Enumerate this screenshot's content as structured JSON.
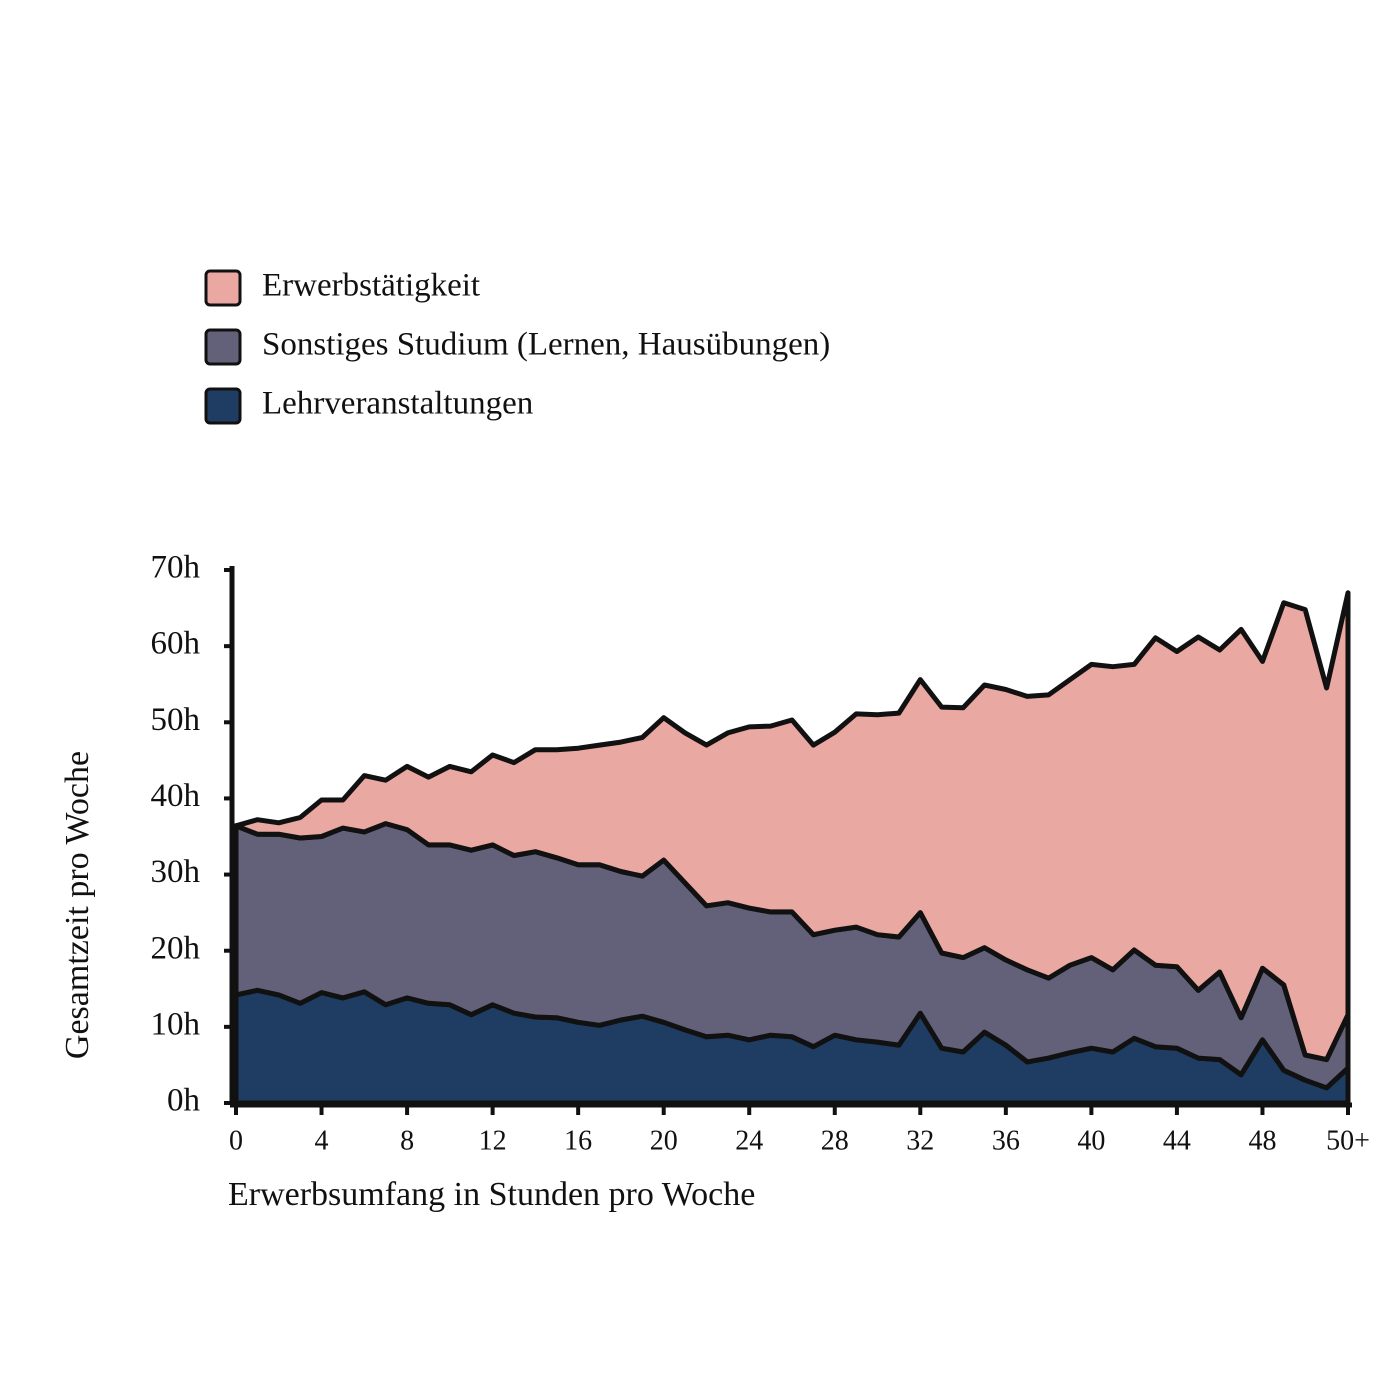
{
  "chart_data": {
    "type": "stacked_area",
    "x_label": "Erwerbsumfang in Stunden pro Woche",
    "y_label": "Gesamtzeit pro Woche",
    "x": [
      0,
      1,
      2,
      3,
      4,
      5,
      6,
      7,
      8,
      9,
      10,
      11,
      12,
      13,
      14,
      15,
      16,
      17,
      18,
      19,
      20,
      21,
      22,
      23,
      24,
      25,
      26,
      27,
      28,
      29,
      30,
      31,
      32,
      33,
      34,
      35,
      36,
      37,
      38,
      39,
      40,
      41,
      42,
      43,
      44,
      45,
      46,
      47,
      48,
      49,
      50,
      51,
      52
    ],
    "series": [
      {
        "name": "Erwerbstätigkeit",
        "color": "#eaa8a3",
        "values": [
          0,
          1.9,
          1.5,
          2.7,
          4.8,
          3.7,
          7.4,
          5.7,
          8.3,
          8.9,
          10.3,
          10.3,
          11.8,
          12.2,
          13.4,
          14.2,
          15.3,
          15.7,
          17,
          18.2,
          18.7,
          19.7,
          21.1,
          22.3,
          23.8,
          24.4,
          25.2,
          24.9,
          26,
          28,
          28.9,
          29.4,
          30.6,
          32.3,
          32.8,
          34.5,
          35.5,
          35.9,
          37.2,
          37.5,
          38.5,
          39.8,
          37.5,
          43,
          41.4,
          46.4,
          42.3,
          51,
          40.3,
          50.2,
          58.5,
          48.8,
          55.4
        ]
      },
      {
        "name": "Sonstiges Studium (Lernen, Hausübungen)",
        "color": "#636079",
        "values": [
          22.2,
          20.5,
          21.1,
          21.7,
          20.5,
          22.3,
          21,
          23.8,
          22.1,
          20.8,
          21,
          21.6,
          21,
          20.7,
          21.7,
          21,
          20.7,
          21.1,
          19.5,
          18.4,
          21.3,
          19.3,
          17.2,
          17.4,
          17.3,
          16.2,
          16.4,
          14.7,
          13.8,
          14.8,
          14.1,
          14.2,
          13.2,
          12.5,
          12.4,
          11.1,
          11.2,
          12.1,
          10.5,
          11.5,
          11.9,
          10.8,
          11.6,
          10.7,
          10.7,
          8.9,
          11.5,
          7.5,
          9.4,
          11.2,
          3.3,
          3.7,
          7
        ]
      },
      {
        "name": "Lehrveranstaltungen",
        "color": "#1f3d63",
        "values": [
          14.2,
          14.8,
          14.2,
          13.1,
          14.5,
          13.8,
          14.6,
          12.9,
          13.8,
          13.1,
          12.9,
          11.6,
          12.9,
          11.8,
          11.3,
          11.2,
          10.6,
          10.2,
          10.9,
          11.4,
          10.6,
          9.6,
          8.7,
          8.9,
          8.3,
          8.9,
          8.7,
          7.4,
          8.9,
          8.3,
          8,
          7.6,
          11.8,
          7.2,
          6.7,
          9.3,
          7.6,
          5.4,
          5.9,
          6.6,
          7.2,
          6.7,
          8.5,
          7.4,
          7.2,
          5.9,
          5.7,
          3.7,
          8.3,
          4.3,
          3,
          2,
          4.6
        ]
      }
    ],
    "xlim": [
      0,
      52
    ],
    "xticks": [
      0,
      4,
      8,
      12,
      16,
      20,
      24,
      28,
      32,
      36,
      40,
      44,
      48,
      {
        "value": 52,
        "label": "50+"
      }
    ],
    "ylim": [
      0,
      70
    ],
    "yticks": [
      {
        "value": 0,
        "label": "0h"
      },
      {
        "value": 10,
        "label": "10h"
      },
      {
        "value": 20,
        "label": "20h"
      },
      {
        "value": 30,
        "label": "30h"
      },
      {
        "value": 40,
        "label": "40h"
      },
      {
        "value": 50,
        "label": "50h"
      },
      {
        "value": 60,
        "label": "60h"
      },
      {
        "value": 70,
        "label": "70h"
      }
    ],
    "legend": "top-left"
  }
}
